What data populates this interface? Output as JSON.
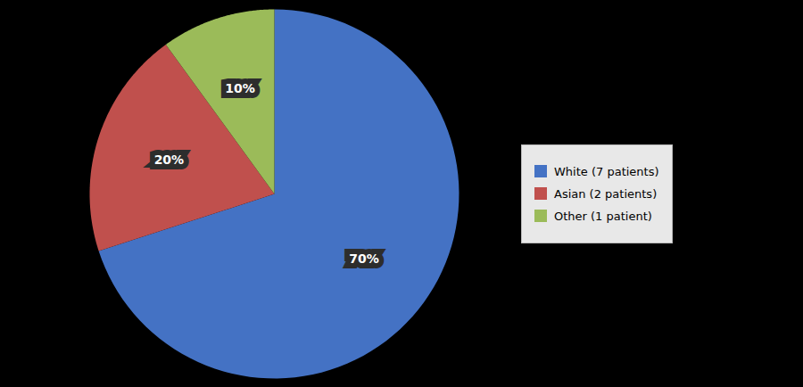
{
  "chart_data": {
    "type": "pie",
    "categories": [
      "White (7 patients)",
      "Asian (2 patients)",
      "Other (1 patient)"
    ],
    "values": [
      70,
      20,
      10
    ],
    "value_labels": [
      "70%",
      "20%",
      "10%"
    ],
    "colors": [
      "#4472C4",
      "#C0504D",
      "#9BBB59"
    ],
    "data_labels": true,
    "legend": "right"
  }
}
